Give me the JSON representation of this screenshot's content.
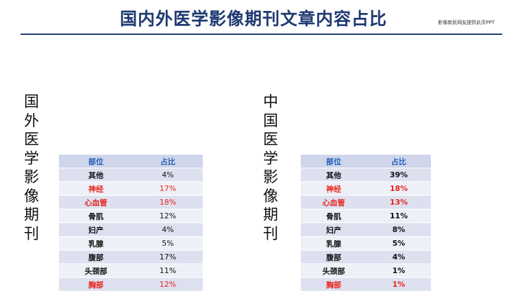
{
  "title": "国内外医学影像期刊文章内容占比",
  "credit": "影像新民网友提供此页PPT",
  "foreign_label": [
    "国",
    "外",
    "医",
    "学",
    "影",
    "像",
    "期",
    "刊"
  ],
  "domestic_label": [
    "中",
    "国",
    "医",
    "学",
    "影",
    "像",
    "期",
    "刊"
  ],
  "foreign_table": {
    "headers": [
      "部位",
      "占比"
    ],
    "rows": [
      {
        "part": "其他",
        "pct": "4%",
        "highlight": false
      },
      {
        "part": "神经",
        "pct": "17%",
        "highlight": true
      },
      {
        "part": "心血管",
        "pct": "18%",
        "highlight": true
      },
      {
        "part": "骨肌",
        "pct": "12%",
        "highlight": false
      },
      {
        "part": "妇产",
        "pct": "4%",
        "highlight": false
      },
      {
        "part": "乳腺",
        "pct": "5%",
        "highlight": false
      },
      {
        "part": "腹部",
        "pct": "17%",
        "highlight": false
      },
      {
        "part": "头颈部",
        "pct": "11%",
        "highlight": false
      },
      {
        "part": "胸部",
        "pct": "12%",
        "highlight": true
      }
    ]
  },
  "domestic_table": {
    "headers": [
      "部位",
      "占比"
    ],
    "rows": [
      {
        "part": "其他",
        "pct": "39%",
        "highlight": false
      },
      {
        "part": "神经",
        "pct": "18%",
        "highlight": true
      },
      {
        "part": "心血管",
        "pct": "13%",
        "highlight": true
      },
      {
        "part": "骨肌",
        "pct": "11%",
        "highlight": false
      },
      {
        "part": "妇产",
        "pct": "8%",
        "highlight": false
      },
      {
        "part": "乳腺",
        "pct": "5%",
        "highlight": false
      },
      {
        "part": "腹部",
        "pct": "4%",
        "highlight": false
      },
      {
        "part": "头颈部",
        "pct": "1%",
        "highlight": false
      },
      {
        "part": "胸部",
        "pct": "1%",
        "highlight": true
      }
    ]
  },
  "colors": {
    "title": "#1f3a72",
    "header_bg": "#cfd5ea",
    "header_text": "#1f5fb8",
    "row_odd": "#dde1ef",
    "row_even": "#eef0f7",
    "highlight": "#e8241c"
  }
}
